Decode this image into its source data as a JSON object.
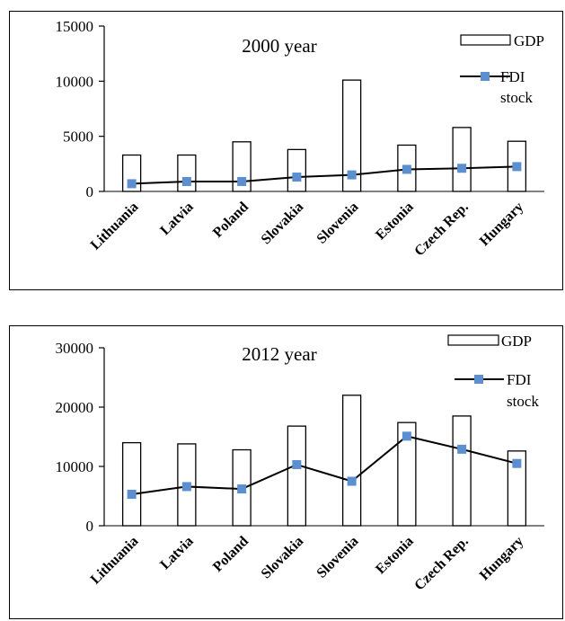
{
  "chart_data": [
    {
      "type": "bar",
      "title": "2000 year",
      "categories": [
        "Lithuania",
        "Latvia",
        "Poland",
        "Slovakia",
        "Slovenia",
        "Estonia",
        "Czech Rep.",
        "Hungary"
      ],
      "ylim": [
        0,
        15000
      ],
      "yticks": [
        "0",
        "5000",
        "10000",
        "15000"
      ],
      "series": [
        {
          "name": "GDP",
          "kind": "bar",
          "values": [
            3300,
            3300,
            4500,
            3800,
            10100,
            4200,
            5800,
            4550
          ]
        },
        {
          "name": "FDI stock",
          "kind": "line",
          "values": [
            700,
            900,
            900,
            1300,
            1500,
            2000,
            2100,
            2250
          ]
        }
      ],
      "legend": {
        "gdp": "GDP",
        "fdi_line1": "FDI",
        "fdi_line2": "stock",
        "position": "top-right"
      },
      "grid": false
    },
    {
      "type": "bar",
      "title": "2012 year",
      "categories": [
        "Lithuania",
        "Latvia",
        "Poland",
        "Slovakia",
        "Slovenia",
        "Estonia",
        "Czech Rep.",
        "Hungary"
      ],
      "ylim": [
        0,
        30000
      ],
      "yticks": [
        "0",
        "10000",
        "20000",
        "30000"
      ],
      "series": [
        {
          "name": "GDP",
          "kind": "bar",
          "values": [
            14000,
            13800,
            12800,
            16800,
            22000,
            17400,
            18500,
            12600
          ]
        },
        {
          "name": "FDI stock",
          "kind": "line",
          "values": [
            5300,
            6600,
            6200,
            10300,
            7500,
            15100,
            12900,
            10500
          ]
        }
      ],
      "legend": {
        "gdp": "GDP",
        "fdi_line1": "FDI",
        "fdi_line2": "stock",
        "position": "top-right"
      },
      "grid": false
    }
  ],
  "colors": {
    "bar_fill": "#ffffff",
    "bar_stroke": "#000000",
    "line": "#000000",
    "marker": "#5b8fd0"
  }
}
